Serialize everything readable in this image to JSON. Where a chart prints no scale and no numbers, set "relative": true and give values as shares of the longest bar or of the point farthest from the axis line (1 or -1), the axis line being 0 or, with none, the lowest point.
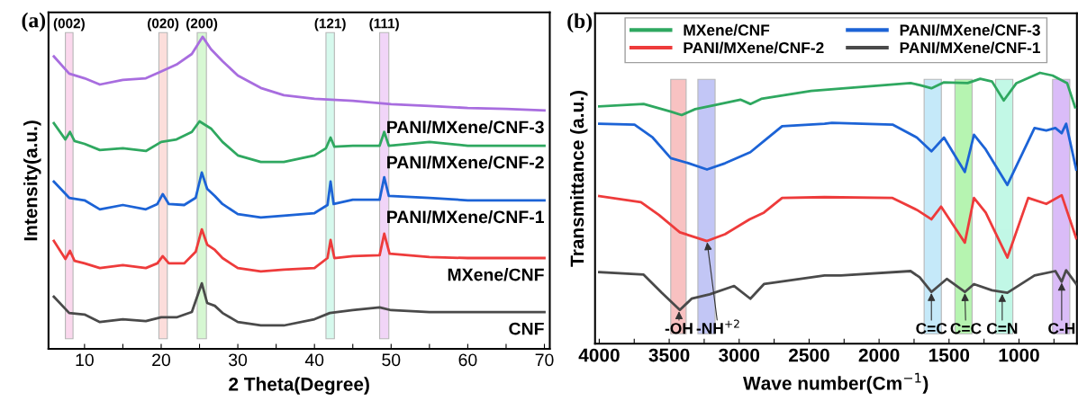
{
  "chart_data": [
    {
      "type": "line",
      "title": "(a)",
      "xlabel": "2 Theta(Degree)",
      "ylabel": "Intensity(a.u.)",
      "relative": true,
      "legend": false,
      "grid": false,
      "marker": "none",
      "line_style": "solid",
      "tick_labels": "x",
      "xlim": [
        5.3,
        70.7
      ],
      "xticks": [
        10,
        {
          "value": 15,
          "label": null
        },
        20,
        {
          "value": 25,
          "label": null
        },
        30,
        {
          "value": 35,
          "label": null
        },
        40,
        {
          "value": 45,
          "label": null
        },
        50,
        {
          "value": 55,
          "label": null
        },
        60,
        {
          "value": 65,
          "label": null
        },
        70
      ],
      "bands": [
        {
          "axis": "x",
          "from": 7.5,
          "to": 8.5,
          "label": "(002)",
          "color": "#f9c8e6"
        },
        {
          "axis": "x",
          "from": 19.7,
          "to": 20.8,
          "label": "(020)",
          "color": "#fbd0cc"
        },
        {
          "axis": "x",
          "from": 24.7,
          "to": 25.9,
          "label": "(200)",
          "color": "#c6f5c0"
        },
        {
          "axis": "x",
          "from": 41.5,
          "to": 42.6,
          "label": "(121)",
          "color": "#c5f7e6"
        },
        {
          "axis": "x",
          "from": 48.5,
          "to": 49.7,
          "label": "(111)",
          "color": "#ecc4f5"
        }
      ],
      "series": [
        {
          "name": "PANI/MXene/CNF-3",
          "color": "#a86ddf",
          "x": [
            6,
            8,
            10,
            12,
            15,
            18,
            20,
            22,
            24,
            25.4,
            26.5,
            28,
            30,
            33,
            36,
            40,
            45,
            50,
            55,
            60,
            65,
            70
          ],
          "values": [
            0.937,
            0.882,
            0.867,
            0.847,
            0.862,
            0.867,
            0.889,
            0.911,
            0.945,
            1.0,
            0.96,
            0.922,
            0.876,
            0.836,
            0.813,
            0.801,
            0.795,
            0.784,
            0.778,
            0.772,
            0.769,
            0.764
          ]
        },
        {
          "name": "PANI/MXene/CNF-2",
          "color": "#2fa860",
          "x": [
            6,
            7.5,
            8.1,
            8.7,
            10,
            12,
            15,
            18,
            20,
            22,
            24,
            25,
            26.5,
            28,
            30,
            33,
            36,
            40,
            41.5,
            42.1,
            42.6,
            45,
            48.5,
            49.1,
            49.7,
            55,
            60,
            65,
            70
          ],
          "values": [
            0.723,
            0.671,
            0.695,
            0.666,
            0.657,
            0.637,
            0.643,
            0.634,
            0.663,
            0.671,
            0.695,
            0.729,
            0.706,
            0.663,
            0.62,
            0.599,
            0.599,
            0.62,
            0.643,
            0.677,
            0.648,
            0.651,
            0.651,
            0.695,
            0.651,
            0.663,
            0.651,
            0.651,
            0.651
          ]
        },
        {
          "name": "PANI/MXene/CNF-1",
          "color": "#1c63d6",
          "x": [
            6,
            8,
            10,
            12,
            15,
            18,
            19.5,
            20.2,
            21,
            23,
            24.5,
            25.3,
            26,
            27,
            28,
            30,
            33,
            36,
            40,
            41.7,
            42.1,
            42.5,
            45,
            48.5,
            49.1,
            49.7,
            55,
            60,
            65,
            70
          ],
          "values": [
            0.536,
            0.484,
            0.476,
            0.447,
            0.461,
            0.447,
            0.464,
            0.496,
            0.464,
            0.461,
            0.484,
            0.565,
            0.513,
            0.49,
            0.464,
            0.432,
            0.421,
            0.427,
            0.435,
            0.461,
            0.536,
            0.464,
            0.478,
            0.478,
            0.55,
            0.49,
            0.484,
            0.476,
            0.476,
            0.476
          ]
        },
        {
          "name": "MXene/CNF",
          "color": "#ee3b3b",
          "x": [
            6,
            7.5,
            8.1,
            8.7,
            10,
            12,
            15,
            18,
            19.5,
            20.2,
            21,
            23,
            24.5,
            25.3,
            26,
            27,
            28,
            30,
            33,
            36,
            40,
            41.7,
            42.1,
            42.6,
            45,
            48.5,
            49.1,
            49.8,
            55,
            60,
            65,
            70
          ],
          "values": [
            0.346,
            0.288,
            0.314,
            0.282,
            0.274,
            0.259,
            0.268,
            0.259,
            0.274,
            0.297,
            0.274,
            0.274,
            0.311,
            0.383,
            0.334,
            0.317,
            0.291,
            0.259,
            0.248,
            0.254,
            0.259,
            0.291,
            0.349,
            0.291,
            0.297,
            0.3,
            0.369,
            0.305,
            0.294,
            0.291,
            0.291,
            0.291
          ]
        },
        {
          "name": "CNF",
          "color": "#4a4a4a",
          "x": [
            6,
            8,
            10,
            12,
            15,
            18,
            20,
            22,
            24,
            25.3,
            26,
            27,
            28,
            30,
            33,
            36,
            40,
            42,
            45,
            48.5,
            50,
            55,
            60,
            65,
            70
          ],
          "values": [
            0.167,
            0.115,
            0.11,
            0.086,
            0.095,
            0.089,
            0.101,
            0.101,
            0.118,
            0.21,
            0.147,
            0.138,
            0.115,
            0.086,
            0.075,
            0.075,
            0.095,
            0.115,
            0.124,
            0.133,
            0.124,
            0.118,
            0.118,
            0.118,
            0.118
          ]
        }
      ]
    },
    {
      "type": "line",
      "title": "(b)",
      "xlabel": "Wave number(Cm$^{−1}$)",
      "ylabel": "Transmittance (a.u.)",
      "relative": true,
      "legend": "top",
      "grid": false,
      "marker": "none",
      "line_style": "solid",
      "tick_labels": "x",
      "xlim": [
        4030,
        586
      ],
      "xticks": [
        4000,
        {
          "value": 3750,
          "label": null
        },
        3500,
        {
          "value": 3250,
          "label": null
        },
        3000,
        {
          "value": 2750,
          "label": null
        },
        2500,
        {
          "value": 2250,
          "label": null
        },
        2000,
        {
          "value": 1750,
          "label": null
        },
        1500,
        {
          "value": 1250,
          "label": null
        },
        1000,
        {
          "value": 750,
          "label": null
        }
      ],
      "bands": [
        {
          "axis": "x",
          "from": 3489,
          "to": 3379,
          "color": "#f6a8a8"
        },
        {
          "axis": "x",
          "from": 3295,
          "to": 3172,
          "color": "#a9aef2"
        },
        {
          "axis": "x",
          "from": 1678,
          "to": 1555,
          "color": "#ade0f7"
        },
        {
          "axis": "x",
          "from": 1458,
          "to": 1335,
          "color": "#98f090"
        },
        {
          "axis": "x",
          "from": 1167,
          "to": 1044,
          "color": "#a8f5dc"
        },
        {
          "axis": "x",
          "from": 760,
          "to": 637,
          "color": "#cba0f5"
        }
      ],
      "annotations": [
        {
          "text": "-OH",
          "x": 3430,
          "y": 0.124
        },
        {
          "text": "-NH$^{+2}$",
          "x": 3230,
          "y": 0.379
        },
        {
          "text": "C=C",
          "x": 1626,
          "y": 0.191
        },
        {
          "text": "C=C",
          "x": 1387,
          "y": 0.191
        },
        {
          "text": "C=N",
          "x": 1120,
          "y": 0.188
        },
        {
          "text": "C-H",
          "x": 695,
          "y": 0.229
        }
      ],
      "series": [
        {
          "name": "MXene/CNF",
          "color": "#2fa860",
          "x": [
            4000,
            3683,
            3489,
            3411,
            3314,
            3166,
            2991,
            2920,
            2842,
            2486,
            1775,
            1710,
            1626,
            1536,
            1367,
            1277,
            1193,
            1109,
            1018,
            850,
            760,
            656,
            599
          ],
          "values": [
            0.876,
            0.885,
            0.857,
            0.844,
            0.866,
            0.882,
            0.901,
            0.885,
            0.904,
            0.933,
            0.962,
            0.955,
            0.943,
            0.965,
            0.962,
            0.978,
            0.968,
            0.898,
            0.962,
            1.0,
            0.99,
            0.962,
            0.873
          ]
        },
        {
          "name": "PANI/MXene/CNF-2",
          "color": "#ee3b3b",
          "x": [
            4000,
            3702,
            3573,
            3424,
            3230,
            3101,
            2926,
            2823,
            2693,
            2390,
            1904,
            1730,
            1626,
            1557,
            1387,
            1322,
            1238,
            1083,
            934,
            805,
            695,
            591
          ],
          "values": [
            0.545,
            0.522,
            0.475,
            0.411,
            0.379,
            0.404,
            0.459,
            0.484,
            0.538,
            0.541,
            0.538,
            0.494,
            0.459,
            0.506,
            0.373,
            0.538,
            0.484,
            0.318,
            0.538,
            0.516,
            0.548,
            0.389
          ]
        },
        {
          "name": "PANI/MXene/CNF-3",
          "color": "#1c63d6",
          "x": [
            4000,
            3748,
            3618,
            3489,
            3360,
            3230,
            3101,
            2920,
            2823,
            2693,
            2390,
            2337,
            1904,
            1730,
            1626,
            1536,
            1387,
            1322,
            1238,
            1083,
            889,
            805,
            740,
            695,
            663,
            591
          ],
          "values": [
            0.812,
            0.809,
            0.761,
            0.685,
            0.666,
            0.643,
            0.666,
            0.707,
            0.748,
            0.803,
            0.812,
            0.815,
            0.809,
            0.761,
            0.71,
            0.761,
            0.634,
            0.771,
            0.717,
            0.586,
            0.796,
            0.787,
            0.796,
            0.777,
            0.812,
            0.643
          ]
        },
        {
          "name": "PANI/MXene/CNF-1",
          "color": "#4a4a4a",
          "x": [
            4000,
            3683,
            3554,
            3424,
            3340,
            3211,
            3036,
            2920,
            2823,
            2390,
            2273,
            1775,
            1710,
            1626,
            1516,
            1387,
            1322,
            1193,
            1083,
            889,
            740,
            695,
            663,
            590
          ],
          "values": [
            0.264,
            0.255,
            0.188,
            0.124,
            0.166,
            0.182,
            0.213,
            0.166,
            0.22,
            0.252,
            0.252,
            0.268,
            0.245,
            0.191,
            0.239,
            0.191,
            0.22,
            0.197,
            0.188,
            0.252,
            0.268,
            0.229,
            0.271,
            0.22
          ]
        }
      ]
    }
  ]
}
